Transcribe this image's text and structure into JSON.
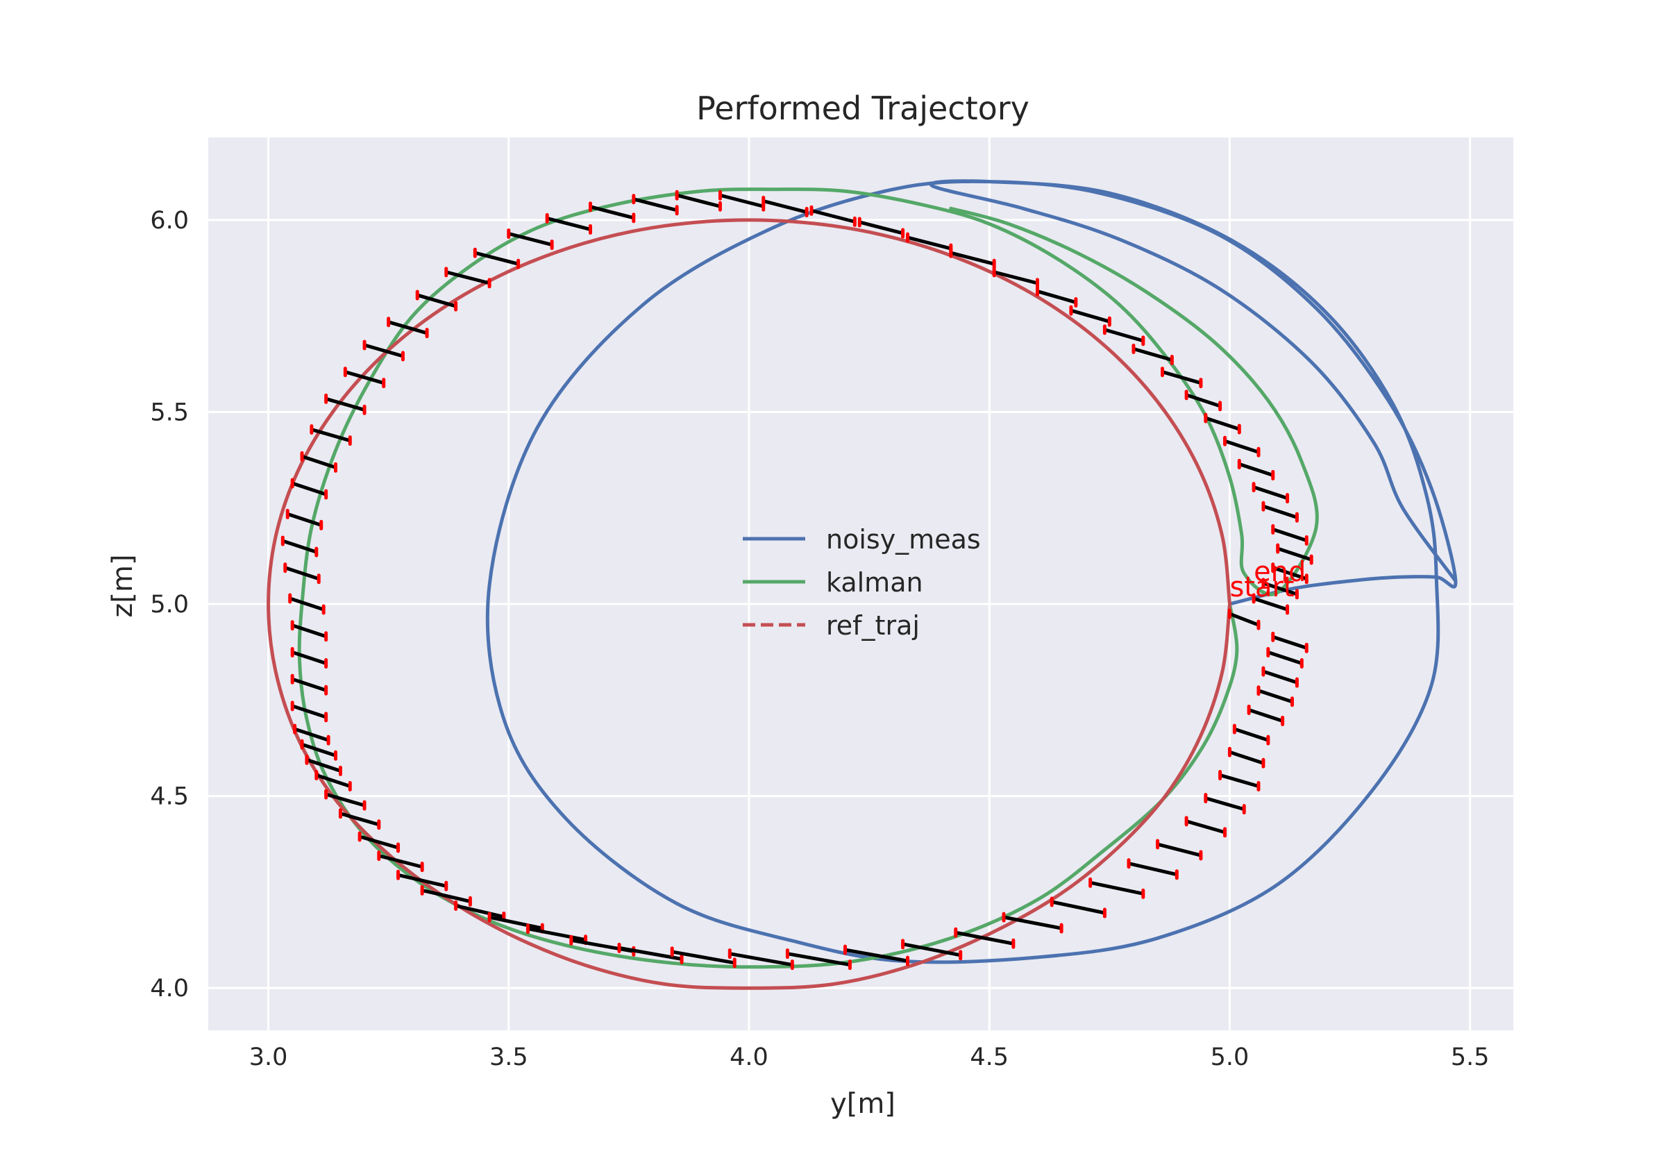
{
  "chart_data": {
    "type": "line",
    "title": "Performed Trajectory",
    "xlabel": "y[m]",
    "ylabel": "z[m]",
    "xlim": [
      2.875,
      5.59
    ],
    "ylim": [
      3.89,
      6.215
    ],
    "x_ticks": [
      3.0,
      3.5,
      4.0,
      4.5,
      5.0,
      5.5
    ],
    "y_ticks": [
      4.0,
      4.5,
      5.0,
      5.5,
      6.0
    ],
    "x_tick_labels": [
      "3.0",
      "3.5",
      "4.0",
      "4.5",
      "5.0",
      "5.5"
    ],
    "y_tick_labels": [
      "4.0",
      "4.5",
      "5.0",
      "5.5",
      "6.0"
    ],
    "grid": true,
    "legend": {
      "placement": "center"
    },
    "colors": {
      "noisy_meas": "#4c72b0",
      "kalman": "#55a868",
      "ref_traj": "#c44e52",
      "orientation_bar": "#000000",
      "bar_tip": "#ff0000",
      "background": "#eaeaf2",
      "grid": "#ffffff"
    },
    "series": [
      {
        "name": "noisy_meas",
        "style": "solid",
        "points": [
          [
            5.0,
            5.0
          ],
          [
            5.13,
            5.04
          ],
          [
            5.25,
            5.06
          ],
          [
            5.35,
            5.07
          ],
          [
            5.43,
            5.07
          ],
          [
            5.47,
            5.06
          ],
          [
            5.42,
            5.3
          ],
          [
            5.33,
            5.53
          ],
          [
            5.18,
            5.77
          ],
          [
            4.98,
            5.96
          ],
          [
            4.73,
            6.07
          ],
          [
            4.5,
            6.1
          ],
          [
            4.3,
            6.08
          ],
          [
            4.05,
            5.98
          ],
          [
            3.78,
            5.78
          ],
          [
            3.56,
            5.46
          ],
          [
            3.46,
            5.05
          ],
          [
            3.49,
            4.7
          ],
          [
            3.62,
            4.44
          ],
          [
            3.85,
            4.22
          ],
          [
            4.1,
            4.12
          ],
          [
            4.32,
            4.07
          ],
          [
            4.6,
            4.08
          ],
          [
            4.85,
            4.13
          ],
          [
            5.1,
            4.27
          ],
          [
            5.3,
            4.52
          ],
          [
            5.42,
            4.79
          ],
          [
            5.43,
            5.07
          ],
          [
            5.41,
            5.28
          ],
          [
            5.34,
            5.52
          ],
          [
            5.2,
            5.76
          ],
          [
            5.0,
            5.95
          ],
          [
            4.75,
            6.07
          ],
          [
            4.5,
            6.1
          ],
          [
            4.38,
            6.09
          ],
          [
            4.57,
            6.03
          ],
          [
            4.77,
            5.95
          ],
          [
            4.98,
            5.82
          ],
          [
            5.17,
            5.63
          ],
          [
            5.3,
            5.42
          ],
          [
            5.36,
            5.25
          ],
          [
            5.47,
            5.06
          ]
        ]
      },
      {
        "name": "kalman",
        "style": "solid",
        "points": [
          [
            5.0,
            5.0
          ],
          [
            5.015,
            4.875
          ],
          [
            4.99,
            4.75
          ],
          [
            4.94,
            4.62
          ],
          [
            4.86,
            4.49
          ],
          [
            4.74,
            4.36
          ],
          [
            4.6,
            4.23
          ],
          [
            4.42,
            4.13
          ],
          [
            4.22,
            4.07
          ],
          [
            4.03,
            4.055
          ],
          [
            3.84,
            4.065
          ],
          [
            3.64,
            4.105
          ],
          [
            3.47,
            4.17
          ],
          [
            3.32,
            4.27
          ],
          [
            3.2,
            4.4
          ],
          [
            3.12,
            4.55
          ],
          [
            3.08,
            4.7
          ],
          [
            3.065,
            4.85
          ],
          [
            3.07,
            5.0
          ],
          [
            3.09,
            5.2
          ],
          [
            3.14,
            5.4
          ],
          [
            3.21,
            5.58
          ],
          [
            3.3,
            5.75
          ],
          [
            3.42,
            5.88
          ],
          [
            3.56,
            5.98
          ],
          [
            3.72,
            6.04
          ],
          [
            3.9,
            6.075
          ],
          [
            4.05,
            6.08
          ],
          [
            4.2,
            6.075
          ],
          [
            4.36,
            6.04
          ],
          [
            4.5,
            5.99
          ],
          [
            4.64,
            5.9
          ],
          [
            4.77,
            5.78
          ],
          [
            4.87,
            5.64
          ],
          [
            4.95,
            5.49
          ],
          [
            5.0,
            5.33
          ],
          [
            5.025,
            5.18
          ],
          [
            5.03,
            5.08
          ],
          [
            5.1,
            5.03
          ],
          [
            5.18,
            5.2
          ],
          [
            5.15,
            5.37
          ],
          [
            5.08,
            5.53
          ],
          [
            4.97,
            5.68
          ],
          [
            4.83,
            5.81
          ],
          [
            4.69,
            5.91
          ],
          [
            4.54,
            5.99
          ],
          [
            4.42,
            6.03
          ]
        ]
      },
      {
        "name": "ref_traj",
        "style": "dashed",
        "points": [
          [
            5.0,
            5.0
          ],
          [
            4.985,
            4.826
          ],
          [
            4.939,
            4.655
          ],
          [
            4.866,
            4.5
          ],
          [
            4.768,
            4.366
          ],
          [
            4.648,
            4.245
          ],
          [
            4.5,
            4.141
          ],
          [
            4.342,
            4.06
          ],
          [
            4.174,
            4.01
          ],
          [
            4.0,
            4.0
          ],
          [
            3.826,
            4.01
          ],
          [
            3.658,
            4.06
          ],
          [
            3.5,
            4.141
          ],
          [
            3.357,
            4.245
          ],
          [
            3.234,
            4.366
          ],
          [
            3.134,
            4.5
          ],
          [
            3.06,
            4.655
          ],
          [
            3.015,
            4.826
          ],
          [
            3.0,
            5.0
          ],
          [
            3.015,
            5.174
          ],
          [
            3.06,
            5.342
          ],
          [
            3.134,
            5.5
          ],
          [
            3.234,
            5.643
          ],
          [
            3.357,
            5.766
          ],
          [
            3.5,
            5.866
          ],
          [
            3.658,
            5.94
          ],
          [
            3.826,
            5.985
          ],
          [
            4.0,
            6.0
          ],
          [
            4.174,
            5.985
          ],
          [
            4.342,
            5.94
          ],
          [
            4.5,
            5.866
          ],
          [
            4.643,
            5.766
          ],
          [
            4.766,
            5.643
          ],
          [
            4.866,
            5.5
          ],
          [
            4.94,
            5.342
          ],
          [
            4.985,
            5.174
          ],
          [
            5.0,
            5.0
          ]
        ]
      }
    ],
    "orientation_bars": [
      [
        3.055,
        3.125,
        4.66
      ],
      [
        3.07,
        3.14,
        4.62
      ],
      [
        3.08,
        3.15,
        4.58
      ],
      [
        3.1,
        3.17,
        4.54
      ],
      [
        3.12,
        3.2,
        4.49
      ],
      [
        3.15,
        3.23,
        4.44
      ],
      [
        3.19,
        3.27,
        4.38
      ],
      [
        3.23,
        3.32,
        4.33
      ],
      [
        3.27,
        3.37,
        4.28
      ],
      [
        3.32,
        3.42,
        4.24
      ],
      [
        3.39,
        3.49,
        4.2
      ],
      [
        3.46,
        3.57,
        4.17
      ],
      [
        3.54,
        3.66,
        4.14
      ],
      [
        3.63,
        3.76,
        4.11
      ],
      [
        3.73,
        3.86,
        4.09
      ],
      [
        3.84,
        3.97,
        4.08
      ],
      [
        3.96,
        4.09,
        4.075
      ],
      [
        4.08,
        4.21,
        4.075
      ],
      [
        4.2,
        4.33,
        4.085
      ],
      [
        4.32,
        4.44,
        4.1
      ],
      [
        4.43,
        4.55,
        4.13
      ],
      [
        4.53,
        4.65,
        4.17
      ],
      [
        4.63,
        4.74,
        4.21
      ],
      [
        4.71,
        4.82,
        4.26
      ],
      [
        4.79,
        4.89,
        4.31
      ],
      [
        4.85,
        4.94,
        4.36
      ],
      [
        4.91,
        4.99,
        4.42
      ],
      [
        4.95,
        5.03,
        4.48
      ],
      [
        4.98,
        5.06,
        4.54
      ],
      [
        5.0,
        5.07,
        4.6
      ],
      [
        5.01,
        5.08,
        4.66
      ],
      [
        5.04,
        5.11,
        4.71
      ],
      [
        5.06,
        5.13,
        4.76
      ],
      [
        5.07,
        5.14,
        4.81
      ],
      [
        5.08,
        5.15,
        4.86
      ],
      [
        5.09,
        5.16,
        4.9
      ],
      [
        5.0,
        5.06,
        4.96
      ],
      [
        5.05,
        5.12,
        5.0
      ],
      [
        5.07,
        5.14,
        5.04
      ],
      [
        5.09,
        5.16,
        5.08
      ],
      [
        5.1,
        5.17,
        5.13
      ],
      [
        5.09,
        5.16,
        5.18
      ],
      [
        5.07,
        5.14,
        5.24
      ],
      [
        5.05,
        5.12,
        5.29
      ],
      [
        5.02,
        5.09,
        5.35
      ],
      [
        4.99,
        5.06,
        5.41
      ],
      [
        4.95,
        5.02,
        5.47
      ],
      [
        4.91,
        4.98,
        5.53
      ],
      [
        4.86,
        4.94,
        5.59
      ],
      [
        4.8,
        4.88,
        5.65
      ],
      [
        4.74,
        4.82,
        5.7
      ],
      [
        4.67,
        4.75,
        5.75
      ],
      [
        4.6,
        4.68,
        5.8
      ],
      [
        4.51,
        4.6,
        5.85
      ],
      [
        4.42,
        4.51,
        5.9
      ],
      [
        4.33,
        4.42,
        5.94
      ],
      [
        4.23,
        4.32,
        5.98
      ],
      [
        4.13,
        4.22,
        6.01
      ],
      [
        4.03,
        4.12,
        6.035
      ],
      [
        3.94,
        4.03,
        6.05
      ],
      [
        3.85,
        3.94,
        6.05
      ],
      [
        3.76,
        3.85,
        6.04
      ],
      [
        3.67,
        3.76,
        6.02
      ],
      [
        3.58,
        3.67,
        5.99
      ],
      [
        3.5,
        3.59,
        5.95
      ],
      [
        3.43,
        3.52,
        5.9
      ],
      [
        3.37,
        3.46,
        5.85
      ],
      [
        3.31,
        3.39,
        5.79
      ],
      [
        3.25,
        3.33,
        5.72
      ],
      [
        3.2,
        3.28,
        5.66
      ],
      [
        3.16,
        3.24,
        5.59
      ],
      [
        3.12,
        3.2,
        5.52
      ],
      [
        3.09,
        3.17,
        5.44
      ],
      [
        3.07,
        3.14,
        5.37
      ],
      [
        3.05,
        3.12,
        5.3
      ],
      [
        3.04,
        3.11,
        5.22
      ],
      [
        3.03,
        3.1,
        5.15
      ],
      [
        3.035,
        3.105,
        5.08
      ],
      [
        3.045,
        3.115,
        5.0
      ],
      [
        3.05,
        3.12,
        4.93
      ],
      [
        3.05,
        3.12,
        4.86
      ],
      [
        3.05,
        3.12,
        4.79
      ],
      [
        3.05,
        3.12,
        4.72
      ]
    ],
    "annotations": [
      {
        "text": "start",
        "x": 5.0,
        "y": 5.02
      },
      {
        "text": "end",
        "x": 5.05,
        "y": 5.06
      }
    ]
  }
}
